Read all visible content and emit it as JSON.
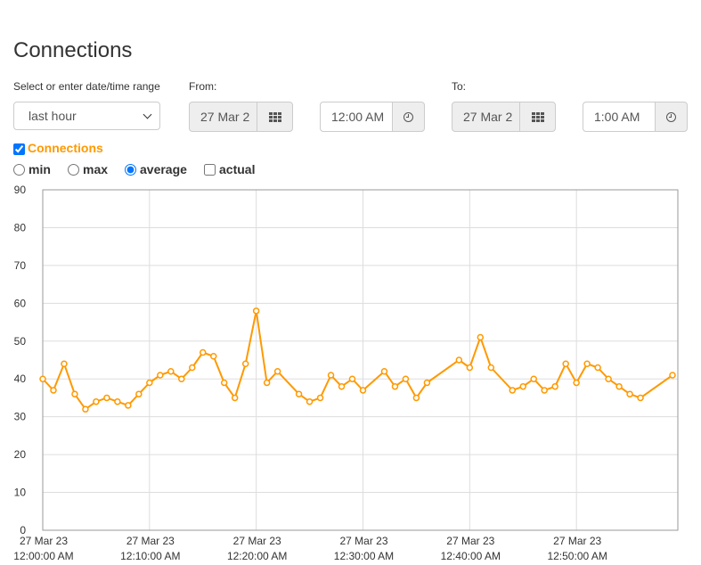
{
  "page": {
    "title": "Connections",
    "range_label": "Select or enter date/time range",
    "range_value": "last hour",
    "from_label": "From:",
    "from_date": "27 Mar 2",
    "from_time": "12:00 AM",
    "to_label": "To:",
    "to_date": "27 Mar 2",
    "to_time": "1:00 AM",
    "series_checkbox": {
      "label": "Connections",
      "checked": true
    },
    "options": [
      {
        "label": "min",
        "type": "radio",
        "checked": false
      },
      {
        "label": "max",
        "type": "radio",
        "checked": false
      },
      {
        "label": "average",
        "type": "radio",
        "checked": true
      },
      {
        "label": "actual",
        "type": "checkbox",
        "checked": false
      }
    ]
  },
  "colors": {
    "series": "#ff9900",
    "grid": "#dddddd",
    "axis": "#999999"
  },
  "icons": {
    "date_picker": "calendar-grid-icon",
    "time_picker": "clock-icon"
  },
  "chart_data": {
    "type": "line",
    "title": "",
    "xlabel": "",
    "ylabel": "",
    "ylim": [
      0,
      90
    ],
    "yticks": [
      0,
      10,
      20,
      30,
      40,
      50,
      60,
      70,
      80,
      90
    ],
    "xlim": [
      0,
      59
    ],
    "x_unit": "minutes",
    "xticks": [
      {
        "x": 0,
        "line1": "27 Mar 23",
        "line2": "12:00:00 AM"
      },
      {
        "x": 10,
        "line1": "27 Mar 23",
        "line2": "12:10:00 AM"
      },
      {
        "x": 20,
        "line1": "27 Mar 23",
        "line2": "12:20:00 AM"
      },
      {
        "x": 30,
        "line1": "27 Mar 23",
        "line2": "12:30:00 AM"
      },
      {
        "x": 40,
        "line1": "27 Mar 23",
        "line2": "12:40:00 AM"
      },
      {
        "x": 50,
        "line1": "27 Mar 23",
        "line2": "12:50:00 AM"
      }
    ],
    "grid": true,
    "series": [
      {
        "points": [
          [
            0,
            40
          ],
          [
            1,
            37
          ],
          [
            2,
            44
          ],
          [
            3,
            36
          ],
          [
            4,
            32
          ],
          [
            5,
            34
          ],
          [
            6,
            35
          ],
          [
            7,
            34
          ],
          [
            8,
            33
          ],
          [
            9,
            36
          ],
          [
            10,
            39
          ],
          [
            11,
            41
          ],
          [
            12,
            42
          ],
          [
            13,
            40
          ],
          [
            14,
            43
          ],
          [
            15,
            47
          ],
          [
            16,
            46
          ],
          [
            17,
            39
          ],
          [
            18,
            35
          ],
          [
            19,
            44
          ],
          [
            20,
            58
          ],
          [
            21,
            39
          ],
          [
            22,
            42
          ],
          [
            24,
            36
          ],
          [
            25,
            34
          ],
          [
            26,
            35
          ],
          [
            27,
            41
          ],
          [
            28,
            38
          ],
          [
            29,
            40
          ],
          [
            30,
            37
          ],
          [
            32,
            42
          ],
          [
            33,
            38
          ],
          [
            34,
            40
          ],
          [
            35,
            35
          ],
          [
            36,
            39
          ],
          [
            39,
            45
          ],
          [
            40,
            43
          ],
          [
            41,
            51
          ],
          [
            42,
            43
          ],
          [
            44,
            37
          ],
          [
            45,
            38
          ],
          [
            46,
            40
          ],
          [
            47,
            37
          ],
          [
            48,
            38
          ],
          [
            49,
            44
          ],
          [
            50,
            39
          ],
          [
            51,
            44
          ],
          [
            52,
            43
          ],
          [
            53,
            40
          ],
          [
            54,
            38
          ],
          [
            55,
            36
          ],
          [
            56,
            35
          ],
          [
            59,
            41
          ]
        ]
      }
    ]
  }
}
